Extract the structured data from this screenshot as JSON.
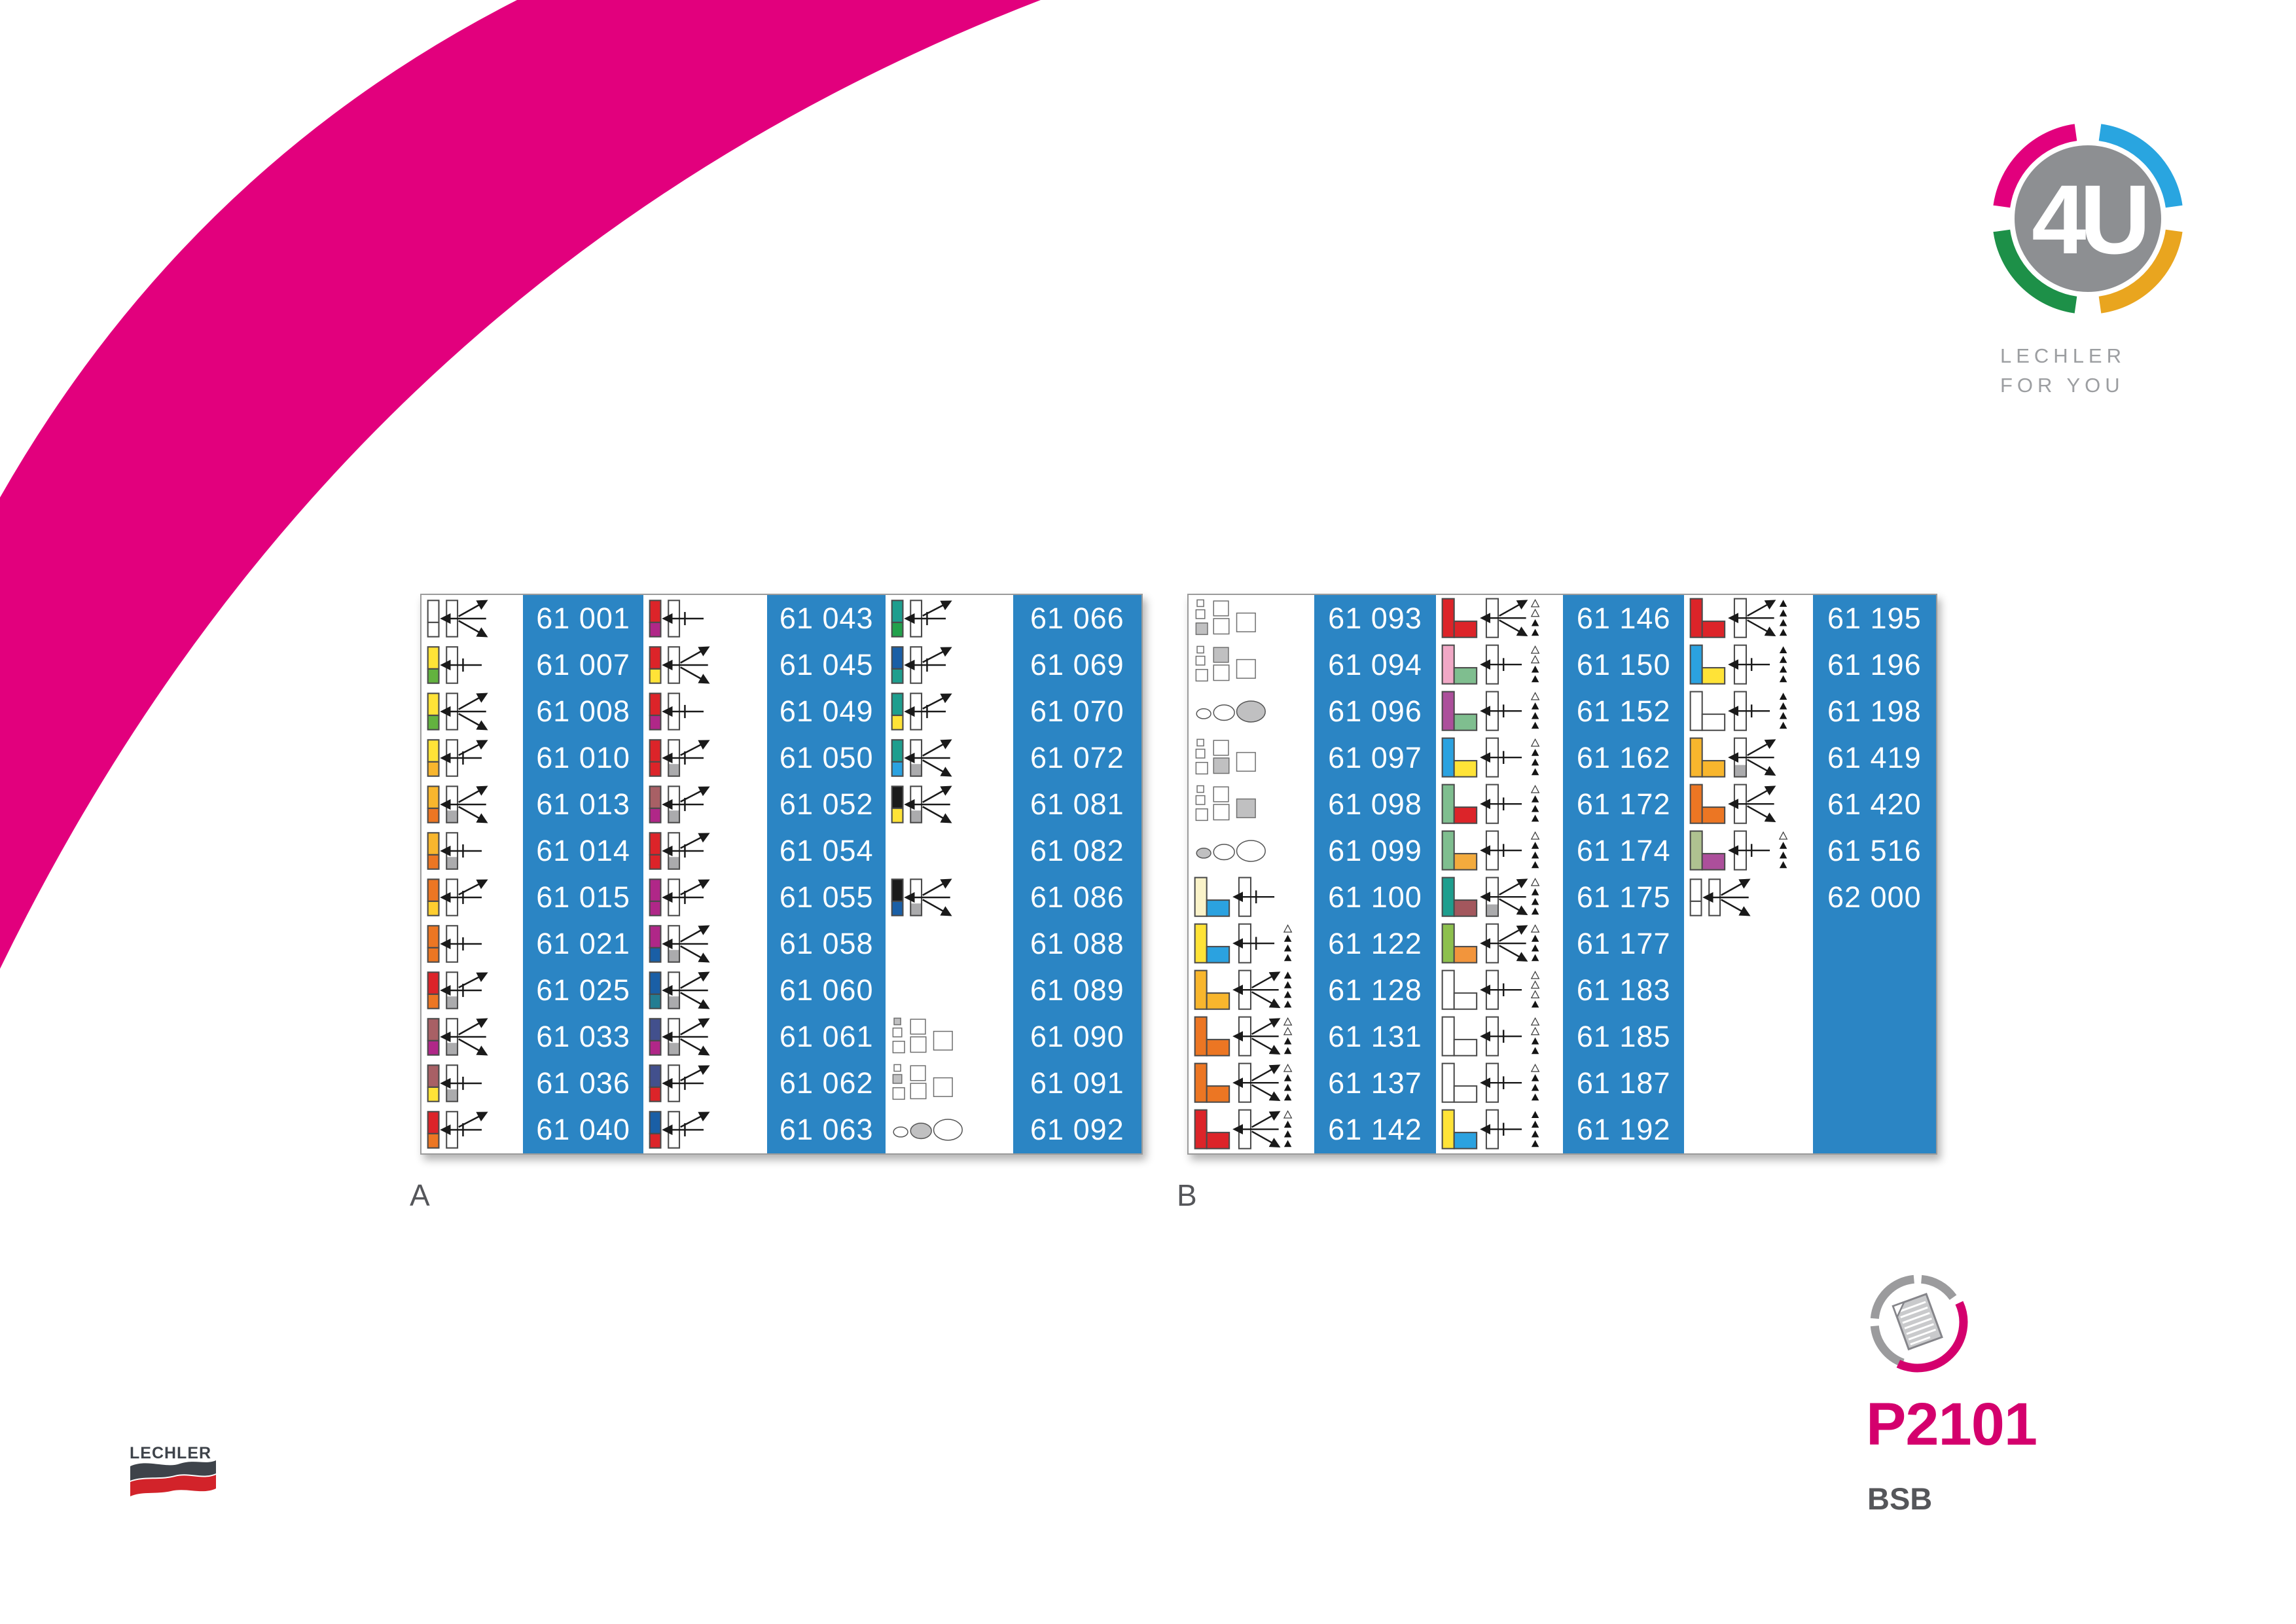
{
  "labels": {
    "table_a": "A",
    "table_b": "B"
  },
  "logo4u": {
    "monogram": "4U",
    "line1": "LECHLER",
    "line2": "FOR YOU"
  },
  "footer": {
    "product_code": "P2101",
    "variant": "BSB",
    "wordmark": "LECHLER"
  },
  "palette": {
    "white": "#FFFFFF",
    "yellow": "#FFE337",
    "gold": "#FFCE30",
    "green": "#63B23F",
    "amber": "#F8B62D",
    "orange": "#EC7623",
    "red": "#DC2429",
    "magenta": "#B02788",
    "mauve": "#A86065",
    "navy": "#42508D",
    "blue": "#1A5FA6",
    "tealdark": "#237D92",
    "teal": "#1E9E8E",
    "green2": "#22A14C",
    "cyan": "#2BA2E0",
    "pink": "#F1A8C6",
    "palegreen": "#7FBE8F",
    "plum": "#AC4F9B",
    "ygreen": "#8DC04D",
    "cream": "#FAF3C9",
    "sage": "#AFC290",
    "maroon": "#A3575D",
    "amber2": "#F3AB3D",
    "orange2": "#F2953C",
    "black": "#1A1A1A",
    "grayfill": "#ABABAD",
    "sqgray": "#C0C0C1",
    "band_blue": "#2B85C4",
    "swoosh_pink": "#E2007D",
    "arc_magenta": "#E2007D",
    "arc_cyan": "#29A5E0",
    "arc_green": "#1D9048",
    "arc_amber": "#E9A51F",
    "logo_gray": "#8D8F92",
    "code_magenta": "#D4006D",
    "wave_dark": "#3E434A",
    "wave_red": "#D2232A"
  },
  "tables": [
    {
      "id": "A",
      "columns": [
        {
          "rows": [
            {
              "code": "61 001",
              "ic": {
                "t": "bars",
                "a": "white",
                "b": "white",
                "g": 0,
                "ar": "f3"
              }
            },
            {
              "code": "61 007",
              "ic": {
                "t": "bars",
                "a": "yellow",
                "b": "green",
                "g": 0,
                "ar": "left"
              }
            },
            {
              "code": "61 008",
              "ic": {
                "t": "bars",
                "a": "yellow",
                "b": "green",
                "g": 0,
                "ar": "f3"
              }
            },
            {
              "code": "61 010",
              "ic": {
                "t": "bars",
                "a": "yellow",
                "b": "amber",
                "g": 0,
                "ar": "lu"
              }
            },
            {
              "code": "61 013",
              "ic": {
                "t": "bars",
                "a": "amber",
                "b": "orange",
                "g": 1,
                "ar": "f3"
              }
            },
            {
              "code": "61 014",
              "ic": {
                "t": "bars",
                "a": "amber",
                "b": "orange",
                "g": 1,
                "ar": "left"
              }
            },
            {
              "code": "61 015",
              "ic": {
                "t": "bars",
                "a": "orange",
                "b": "gold",
                "g": 0,
                "ar": "lu"
              }
            },
            {
              "code": "61 021",
              "ic": {
                "t": "bars",
                "a": "orange",
                "b": "orange",
                "g": 0,
                "ar": "left"
              }
            },
            {
              "code": "61 025",
              "ic": {
                "t": "bars",
                "a": "red",
                "b": "orange",
                "g": 1,
                "ar": "lu"
              }
            },
            {
              "code": "61 033",
              "ic": {
                "t": "bars",
                "a": "mauve",
                "b": "magenta",
                "g": 1,
                "ar": "f3"
              }
            },
            {
              "code": "61 036",
              "ic": {
                "t": "bars",
                "a": "mauve",
                "b": "yellow",
                "g": 1,
                "ar": "left"
              }
            },
            {
              "code": "61 040",
              "ic": {
                "t": "bars",
                "a": "red",
                "b": "orange",
                "g": 0,
                "ar": "lu"
              }
            }
          ]
        },
        {
          "rows": [
            {
              "code": "61 043",
              "ic": {
                "t": "bars",
                "a": "red",
                "b": "magenta",
                "g": 0,
                "ar": "left"
              }
            },
            {
              "code": "61 045",
              "ic": {
                "t": "bars",
                "a": "red",
                "b": "yellow",
                "g": 0,
                "ar": "f3"
              }
            },
            {
              "code": "61 049",
              "ic": {
                "t": "bars",
                "a": "red",
                "b": "magenta",
                "g": 0,
                "ar": "left"
              }
            },
            {
              "code": "61 050",
              "ic": {
                "t": "bars",
                "a": "red",
                "b": "red",
                "g": 1,
                "ar": "lu"
              }
            },
            {
              "code": "61 052",
              "ic": {
                "t": "bars",
                "a": "mauve",
                "b": "magenta",
                "g": 1,
                "ar": "lu"
              }
            },
            {
              "code": "61 054",
              "ic": {
                "t": "bars",
                "a": "red",
                "b": "red",
                "g": 1,
                "ar": "lu"
              }
            },
            {
              "code": "61 055",
              "ic": {
                "t": "bars",
                "a": "magenta",
                "b": "magenta",
                "g": 0,
                "ar": "lu"
              }
            },
            {
              "code": "61 058",
              "ic": {
                "t": "bars",
                "a": "magenta",
                "b": "blue",
                "g": 1,
                "ar": "f3"
              }
            },
            {
              "code": "61 060",
              "ic": {
                "t": "bars",
                "a": "blue",
                "b": "tealdark",
                "g": 1,
                "ar": "f3"
              }
            },
            {
              "code": "61 061",
              "ic": {
                "t": "bars",
                "a": "navy",
                "b": "magenta",
                "g": 1,
                "ar": "f3"
              }
            },
            {
              "code": "61 062",
              "ic": {
                "t": "bars",
                "a": "navy",
                "b": "red",
                "g": 0,
                "ar": "lu"
              }
            },
            {
              "code": "61 063",
              "ic": {
                "t": "bars",
                "a": "blue",
                "b": "red",
                "g": 0,
                "ar": "lu"
              }
            }
          ]
        },
        {
          "rows": [
            {
              "code": "61 066",
              "ic": {
                "t": "bars",
                "a": "teal",
                "b": "green2",
                "g": 0,
                "ar": "lu"
              }
            },
            {
              "code": "61 069",
              "ic": {
                "t": "bars",
                "a": "blue",
                "b": "teal",
                "g": 0,
                "ar": "lu"
              }
            },
            {
              "code": "61 070",
              "ic": {
                "t": "bars",
                "a": "teal",
                "b": "yellow",
                "g": 0,
                "ar": "lu"
              }
            },
            {
              "code": "61 072",
              "ic": {
                "t": "bars",
                "a": "teal",
                "b": "cyan",
                "g": 1,
                "ar": "f3"
              }
            },
            {
              "code": "61 081",
              "ic": {
                "t": "bars",
                "a": "black",
                "b": "yellow",
                "g": 1,
                "ar": "f3"
              }
            },
            {
              "code": "61 082",
              "ic": {
                "t": "none"
              }
            },
            {
              "code": "61 086",
              "ic": {
                "t": "bars",
                "a": "black",
                "b": "blue",
                "g": 1,
                "ar": "f3"
              }
            },
            {
              "code": "61 088",
              "ic": {
                "t": "none"
              }
            },
            {
              "code": "61 089",
              "ic": {
                "t": "none"
              }
            },
            {
              "code": "61 090",
              "ic": {
                "t": "sq",
                "cells": "gww,ww,w"
              }
            },
            {
              "code": "61 091",
              "ic": {
                "t": "sq",
                "cells": "wgw,ww,w"
              }
            },
            {
              "code": "61 092",
              "ic": {
                "t": "el",
                "cells": "wgw"
              }
            }
          ]
        }
      ]
    },
    {
      "id": "B",
      "columns": [
        {
          "rows": [
            {
              "code": "61 093",
              "ic": {
                "t": "sq",
                "cells": "wwg,ww,w"
              }
            },
            {
              "code": "61 094",
              "ic": {
                "t": "sq",
                "cells": "www,gw,w"
              }
            },
            {
              "code": "61 096",
              "ic": {
                "t": "el",
                "cells": "wwg"
              }
            },
            {
              "code": "61 097",
              "ic": {
                "t": "sq",
                "cells": "www,wg,w"
              }
            },
            {
              "code": "61 098",
              "ic": {
                "t": "sq",
                "cells": "www,ww,g"
              }
            },
            {
              "code": "61 099",
              "ic": {
                "t": "el",
                "cells": "gww"
              }
            },
            {
              "code": "61 100",
              "ic": {
                "t": "L",
                "a": "cream",
                "b": "cyan",
                "g": 0,
                "ar": "left",
                "tri": ""
              }
            },
            {
              "code": "61 122",
              "ic": {
                "t": "L",
                "a": "yellow",
                "b": "cyan",
                "g": 0,
                "ar": "left",
                "tri": "offf"
              }
            },
            {
              "code": "61 128",
              "ic": {
                "t": "L",
                "a": "amber",
                "b": "amber",
                "g": 0,
                "ar": "f3",
                "tri": "ffff"
              }
            },
            {
              "code": "61 131",
              "ic": {
                "t": "L",
                "a": "orange",
                "b": "orange",
                "g": 0,
                "ar": "f3",
                "tri": "ooff"
              }
            },
            {
              "code": "61 137",
              "ic": {
                "t": "L",
                "a": "orange",
                "b": "orange",
                "g": 0,
                "ar": "f3",
                "tri": "offf"
              }
            },
            {
              "code": "61 142",
              "ic": {
                "t": "L",
                "a": "red",
                "b": "red",
                "g": 0,
                "ar": "f3",
                "tri": "offf"
              }
            }
          ]
        },
        {
          "rows": [
            {
              "code": "61 146",
              "ic": {
                "t": "L",
                "a": "red",
                "b": "red",
                "g": 0,
                "ar": "f3",
                "tri": "ooff"
              }
            },
            {
              "code": "61 150",
              "ic": {
                "t": "L",
                "a": "pink",
                "b": "palegreen",
                "g": 0,
                "ar": "left",
                "tri": "ooff"
              }
            },
            {
              "code": "61 152",
              "ic": {
                "t": "L",
                "a": "plum",
                "b": "palegreen",
                "g": 0,
                "ar": "left",
                "tri": "offf"
              }
            },
            {
              "code": "61 162",
              "ic": {
                "t": "L",
                "a": "cyan",
                "b": "yellow",
                "g": 0,
                "ar": "left",
                "tri": "offf"
              }
            },
            {
              "code": "61 172",
              "ic": {
                "t": "L",
                "a": "palegreen",
                "b": "red",
                "g": 0,
                "ar": "left",
                "tri": "offf"
              }
            },
            {
              "code": "61 174",
              "ic": {
                "t": "L",
                "a": "palegreen",
                "b": "amber2",
                "g": 0,
                "ar": "left",
                "tri": "offf"
              }
            },
            {
              "code": "61 175",
              "ic": {
                "t": "L",
                "a": "teal",
                "b": "maroon",
                "g": 1,
                "ar": "f3",
                "tri": "offf"
              }
            },
            {
              "code": "61 177",
              "ic": {
                "t": "L",
                "a": "ygreen",
                "b": "orange2",
                "g": 0,
                "ar": "f3",
                "tri": "offf"
              }
            },
            {
              "code": "61 183",
              "ic": {
                "t": "L",
                "a": "white",
                "b": "white",
                "g": 0,
                "ar": "left",
                "tri": "ooof"
              }
            },
            {
              "code": "61 185",
              "ic": {
                "t": "L",
                "a": "white",
                "b": "white",
                "g": 0,
                "ar": "left",
                "tri": "ooff"
              }
            },
            {
              "code": "61 187",
              "ic": {
                "t": "L",
                "a": "white",
                "b": "white",
                "g": 0,
                "ar": "left",
                "tri": "offf"
              }
            },
            {
              "code": "61 192",
              "ic": {
                "t": "L",
                "a": "yellow",
                "b": "cyan",
                "g": 0,
                "ar": "left",
                "tri": "ffff"
              }
            }
          ]
        },
        {
          "rows": [
            {
              "code": "61 195",
              "ic": {
                "t": "L",
                "a": "red",
                "b": "red",
                "g": 0,
                "ar": "f3",
                "tri": "ffff"
              }
            },
            {
              "code": "61 196",
              "ic": {
                "t": "L",
                "a": "cyan",
                "b": "yellow",
                "g": 0,
                "ar": "left",
                "tri": "ffff"
              }
            },
            {
              "code": "61 198",
              "ic": {
                "t": "L",
                "a": "white",
                "b": "white",
                "g": 0,
                "ar": "left",
                "tri": "ffff"
              }
            },
            {
              "code": "61 419",
              "ic": {
                "t": "L",
                "a": "amber",
                "b": "amber",
                "g": 1,
                "ar": "f3",
                "tri": ""
              }
            },
            {
              "code": "61 420",
              "ic": {
                "t": "L",
                "a": "orange",
                "b": "orange",
                "g": 0,
                "ar": "f3",
                "tri": ""
              }
            },
            {
              "code": "61 516",
              "ic": {
                "t": "L",
                "a": "sage",
                "b": "plum",
                "g": 0,
                "ar": "left",
                "tri": "offf"
              }
            },
            {
              "code": "62 000",
              "ic": {
                "t": "bars",
                "a": "white",
                "b": "white",
                "g": 0,
                "ar": "f3"
              }
            },
            {
              "code": "",
              "ic": {
                "t": "none"
              }
            },
            {
              "code": "",
              "ic": {
                "t": "none"
              }
            },
            {
              "code": "",
              "ic": {
                "t": "none"
              }
            },
            {
              "code": "",
              "ic": {
                "t": "none"
              }
            },
            {
              "code": "",
              "ic": {
                "t": "none"
              }
            }
          ]
        }
      ]
    }
  ]
}
